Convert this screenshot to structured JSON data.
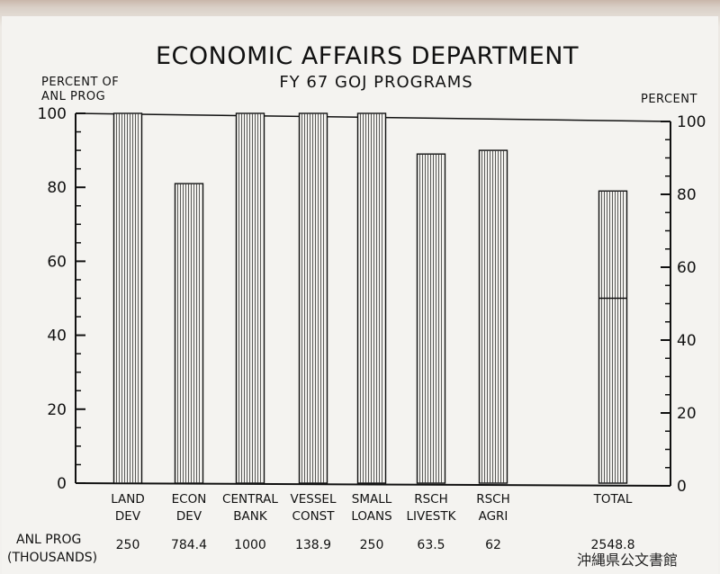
{
  "chart_data": {
    "type": "bar",
    "title": "ECONOMIC AFFAIRS DEPARTMENT",
    "subtitle": "FY 67 GOJ PROGRAMS",
    "ylabel_left": [
      "PERCENT OF",
      "ANL PROG"
    ],
    "ylabel_right": "PERCENT",
    "ylim": [
      0,
      100
    ],
    "yticks": [
      "0",
      "20",
      "40",
      "60",
      "80",
      "100"
    ],
    "categories": [
      [
        "LAND",
        "DEV"
      ],
      [
        "ECON",
        "DEV"
      ],
      [
        "CENTRAL",
        "BANK"
      ],
      [
        "VESSEL",
        "CONST"
      ],
      [
        "SMALL",
        "LOANS"
      ],
      [
        "RSCH",
        "LIVESTK"
      ],
      [
        "RSCH",
        "AGRI"
      ],
      [
        "TOTAL",
        ""
      ]
    ],
    "values": [
      100,
      81,
      100,
      100,
      100,
      89,
      90,
      79
    ],
    "total_marker": 50,
    "grid": false,
    "legend": "none",
    "anl_prog_label": [
      "ANL PROG",
      "(THOUSANDS)"
    ],
    "anl_prog_values": [
      "250",
      "784.4",
      "1000",
      "138.9",
      "250",
      "63.5",
      "62",
      "2548.8"
    ]
  },
  "stamp": "沖縄県公文書館"
}
